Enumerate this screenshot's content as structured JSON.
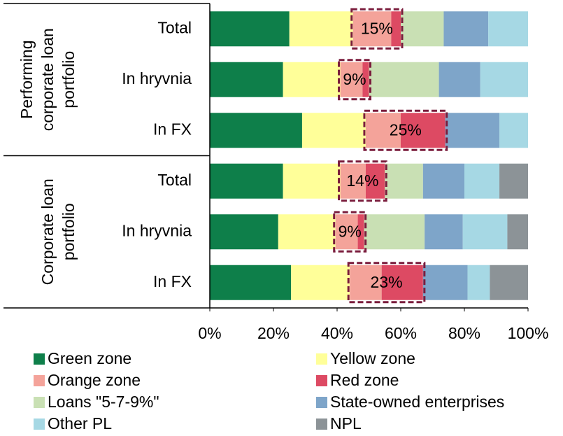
{
  "chart_data": {
    "type": "stacked_barh",
    "categories": [
      "Total",
      "In hryvnia",
      "In FX",
      "Total",
      "In hryvnia",
      "In FX"
    ],
    "groups": [
      {
        "lines": [
          "Performing",
          "corporate loan",
          "portfolio"
        ]
      },
      {
        "lines": [
          "Corporate loan",
          "portfolio"
        ]
      }
    ],
    "series": [
      {
        "name": "Green zone",
        "color": "#0e7f4a",
        "values": [
          25,
          23,
          29,
          23,
          21.5,
          25.5
        ]
      },
      {
        "name": "Yellow zone",
        "color": "#ffff99",
        "values": [
          20,
          18,
          20,
          18,
          18,
          18.5
        ]
      },
      {
        "name": "Orange zone",
        "color": "#f4a39a",
        "values": [
          12,
          7,
          11,
          8,
          7,
          10
        ]
      },
      {
        "name": "Red zone",
        "color": "#dd4a63",
        "values": [
          3,
          2,
          14,
          6,
          2,
          13
        ]
      },
      {
        "name": "Loans \"5-7-9%\"",
        "color": "#c9e0b4",
        "values": [
          13.5,
          22,
          0,
          12,
          19,
          0
        ]
      },
      {
        "name": "State-owned enterprises",
        "color": "#7ea5c9",
        "values": [
          14,
          13,
          17,
          13,
          12,
          14
        ]
      },
      {
        "name": "Other PL",
        "color": "#a6d8e4",
        "values": [
          12.5,
          15,
          9,
          11,
          14,
          7
        ]
      },
      {
        "name": "NPL",
        "color": "#8c9397",
        "values": [
          0,
          0,
          0,
          9,
          6.5,
          12
        ]
      }
    ],
    "box_labels": [
      "15%",
      "9%",
      "25%",
      "14%",
      "9%",
      "23%"
    ],
    "xlim": [
      0,
      100
    ],
    "xticks": [
      {
        "value": 0,
        "label": "0%"
      },
      {
        "value": 20,
        "label": "20%"
      },
      {
        "value": 40,
        "label": "40%"
      },
      {
        "value": 60,
        "label": "60%"
      },
      {
        "value": 80,
        "label": "80%"
      },
      {
        "value": 100,
        "label": "100%"
      }
    ]
  }
}
